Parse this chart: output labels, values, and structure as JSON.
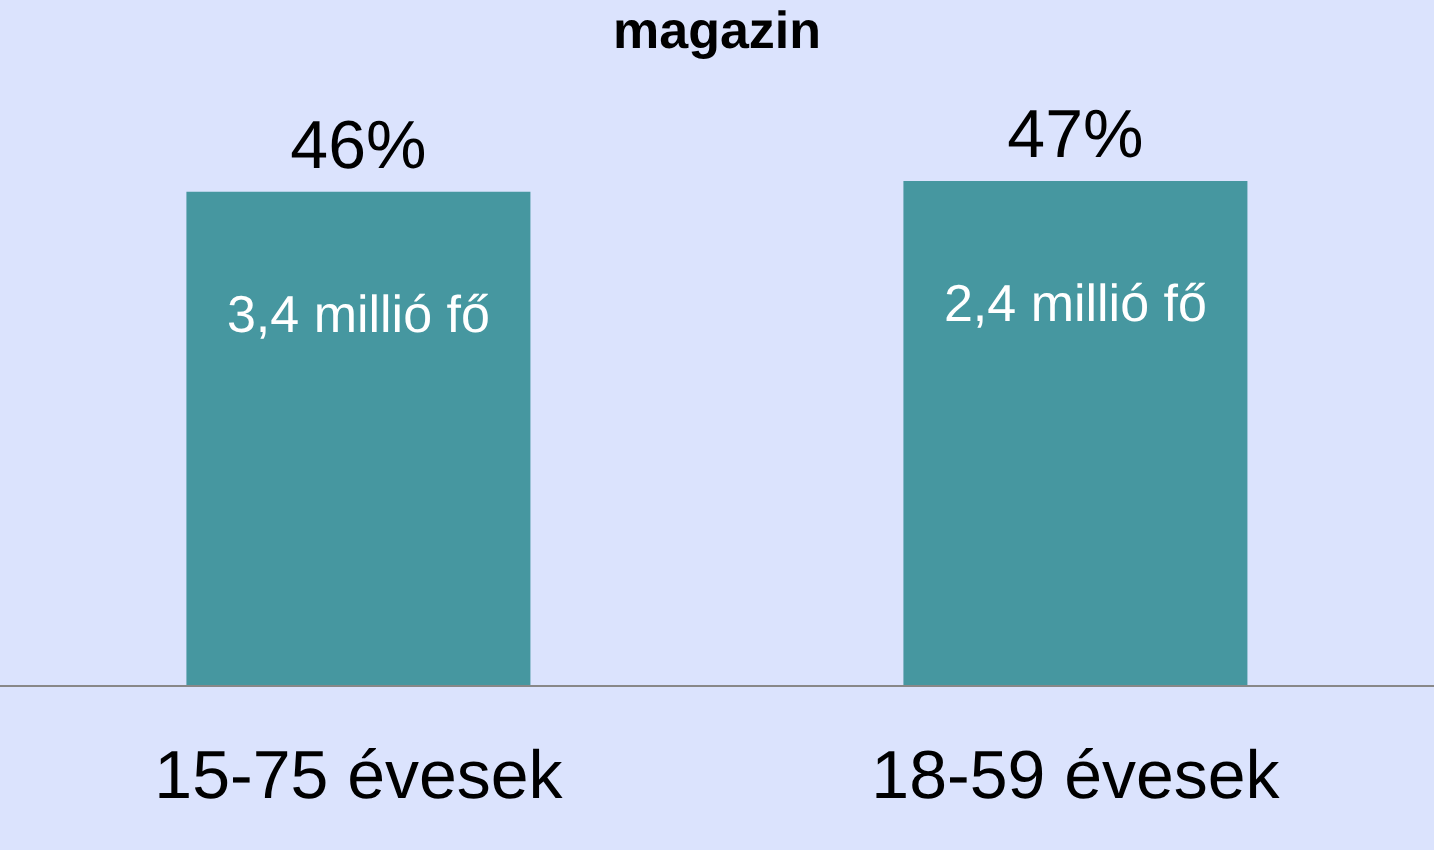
{
  "chart_data": {
    "type": "bar",
    "title": "magazin",
    "categories": [
      "15-75 évesek",
      "18-59 évesek"
    ],
    "values": [
      46,
      47
    ],
    "color": "#4697a0",
    "value_labels": [
      "46%",
      "47%"
    ],
    "annotations": [
      {
        "text": "3,4 millió fő",
        "x": "15-75 évesek",
        "y": 46
      },
      {
        "text": "2,4 millió fő",
        "x": "18-59 évesek",
        "y": 47
      }
    ],
    "legend": false
  }
}
